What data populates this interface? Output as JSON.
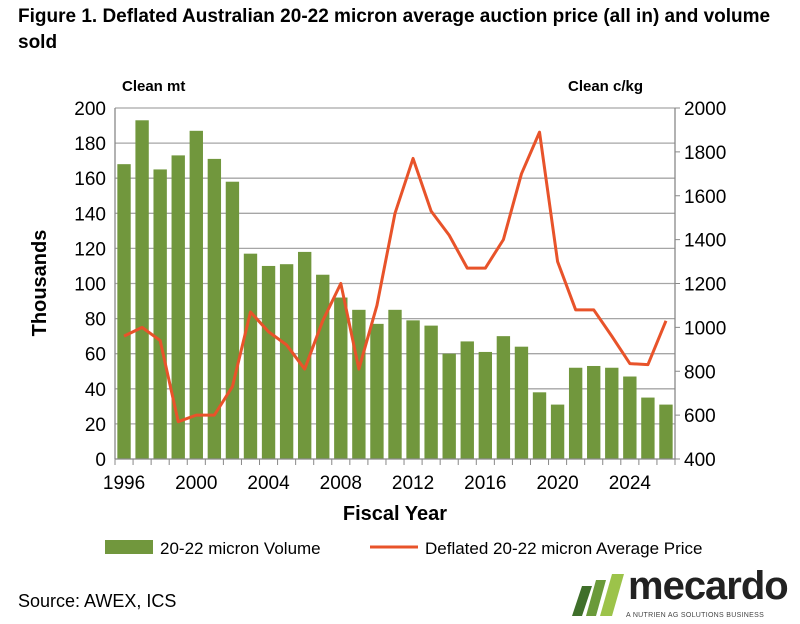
{
  "chart_data": {
    "type": "bar+line",
    "title": "Figure 1. Deflated Australian 20-22 micron average auction price (all in) and volume sold",
    "xlabel": "Fiscal Year",
    "ylabel": "Thousands",
    "y_unit_left": "Clean mt",
    "y_unit_right": "Clean c/kg",
    "ylim_left": [
      0,
      200
    ],
    "ylim_right": [
      400,
      2000
    ],
    "yticks_left": [
      0,
      20,
      40,
      60,
      80,
      100,
      120,
      140,
      160,
      180,
      200
    ],
    "yticks_right": [
      400,
      600,
      800,
      1000,
      1200,
      1400,
      1600,
      1800,
      2000
    ],
    "xtick_labels": [
      "1996",
      "2000",
      "2004",
      "2008",
      "2012",
      "2016",
      "2020",
      "2024"
    ],
    "grid": true,
    "legend_position": "bottom",
    "x": [
      1996,
      1997,
      1998,
      1999,
      2000,
      2001,
      2002,
      2003,
      2004,
      2005,
      2006,
      2007,
      2008,
      2009,
      2010,
      2011,
      2012,
      2013,
      2014,
      2015,
      2016,
      2017,
      2018,
      2019,
      2020,
      2021,
      2022,
      2023,
      2024,
      2025,
      2026
    ],
    "series": [
      {
        "name": "20-22 micron Volume",
        "type": "bar",
        "axis": "left",
        "color": "#71973d",
        "values": [
          168,
          193,
          165,
          173,
          187,
          171,
          158,
          117,
          110,
          111,
          118,
          105,
          92,
          85,
          77,
          85,
          79,
          76,
          60,
          67,
          61,
          70,
          64,
          38,
          31,
          52,
          53,
          52,
          47,
          35,
          31
        ]
      },
      {
        "name": "Deflated 20-22 micron Average Price",
        "type": "line",
        "axis": "right",
        "color": "#e8532a",
        "values": [
          960,
          1000,
          940,
          570,
          600,
          600,
          730,
          1070,
          980,
          920,
          810,
          1030,
          1200,
          810,
          1100,
          1520,
          1770,
          1530,
          1420,
          1270,
          1270,
          1400,
          1700,
          1890,
          1300,
          1080,
          1080,
          960,
          835,
          830,
          1030
        ]
      }
    ]
  },
  "source": "Source: AWEX, ICS",
  "logo": {
    "name": "mecardo",
    "tagline": "A NUTRIEN AG SOLUTIONS BUSINESS"
  }
}
